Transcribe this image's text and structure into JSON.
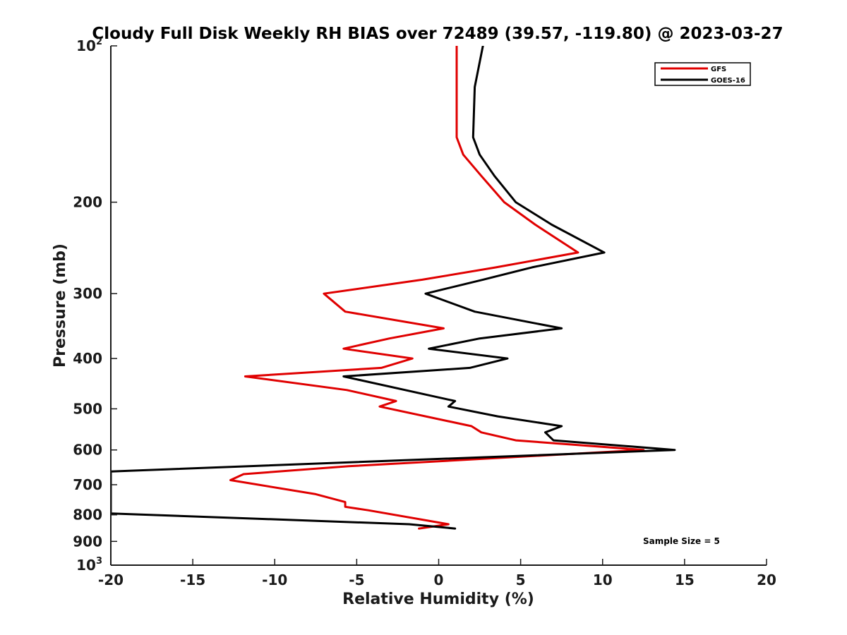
{
  "chart_data": {
    "type": "line",
    "title": "Cloudy Full Disk Weekly RH BIAS over 72489 (39.57, -119.80) @ 2023-03-27",
    "xlabel": "Relative Humidity (%)",
    "ylabel": "Pressure (mb)",
    "xlim": [
      -20,
      20
    ],
    "ylim": [
      100,
      1000
    ],
    "y_scale": "log",
    "y_reversed": true,
    "grid": false,
    "legend_position": "top-right",
    "x_ticks": [
      -20,
      -15,
      -10,
      -5,
      0,
      5,
      10,
      15,
      20
    ],
    "x_tick_labels": [
      "-20",
      "-15",
      "-10",
      "-5",
      "0",
      "5",
      "10",
      "15",
      "20"
    ],
    "y_ticks": [
      100,
      200,
      300,
      400,
      500,
      600,
      700,
      800,
      900,
      1000
    ],
    "y_tick_labels": [
      {
        "base": "10",
        "exp": "2"
      },
      {
        "base": "200",
        "exp": ""
      },
      {
        "base": "300",
        "exp": ""
      },
      {
        "base": "400",
        "exp": ""
      },
      {
        "base": "500",
        "exp": ""
      },
      {
        "base": "600",
        "exp": ""
      },
      {
        "base": "700",
        "exp": ""
      },
      {
        "base": "800",
        "exp": ""
      },
      {
        "base": "900",
        "exp": ""
      },
      {
        "base": "10",
        "exp": "3"
      }
    ],
    "series": [
      {
        "name": "GFS",
        "color": "#e00000",
        "points": [
          [
            1.1,
            100
          ],
          [
            1.1,
            125
          ],
          [
            1.1,
            150
          ],
          [
            1.5,
            162
          ],
          [
            2.6,
            178
          ],
          [
            4.0,
            200
          ],
          [
            5.9,
            221
          ],
          [
            8.5,
            250
          ],
          [
            3.5,
            267
          ],
          [
            -1.0,
            282
          ],
          [
            -7.0,
            300
          ],
          [
            -5.7,
            325
          ],
          [
            0.3,
            350
          ],
          [
            -3.0,
            366
          ],
          [
            -5.8,
            383
          ],
          [
            -1.6,
            400
          ],
          [
            -3.5,
            417
          ],
          [
            -11.8,
            433
          ],
          [
            -5.6,
            460
          ],
          [
            -2.6,
            483
          ],
          [
            -3.6,
            495
          ],
          [
            2.0,
            540
          ],
          [
            2.6,
            555
          ],
          [
            4.7,
            575
          ],
          [
            12.5,
            600
          ],
          [
            -5.5,
            645
          ],
          [
            -11.9,
            668
          ],
          [
            -12.7,
            686
          ],
          [
            -7.5,
            730
          ],
          [
            -5.7,
            756
          ],
          [
            -5.7,
            772
          ],
          [
            -4.3,
            784
          ],
          [
            0.6,
            834
          ],
          [
            -1.2,
            850
          ]
        ]
      },
      {
        "name": "GOES-16",
        "color": "#000000",
        "points": [
          [
            2.7,
            100
          ],
          [
            2.2,
            120
          ],
          [
            2.1,
            150
          ],
          [
            2.5,
            162
          ],
          [
            3.4,
            178
          ],
          [
            4.7,
            200
          ],
          [
            6.9,
            221
          ],
          [
            10.1,
            250
          ],
          [
            5.7,
            267
          ],
          [
            2.7,
            282
          ],
          [
            -0.8,
            300
          ],
          [
            2.2,
            325
          ],
          [
            7.5,
            350
          ],
          [
            2.5,
            366
          ],
          [
            -0.6,
            383
          ],
          [
            4.2,
            400
          ],
          [
            1.9,
            417
          ],
          [
            -5.8,
            433
          ],
          [
            -0.7,
            470
          ],
          [
            1.0,
            483
          ],
          [
            0.6,
            495
          ],
          [
            3.6,
            517
          ],
          [
            7.5,
            540
          ],
          [
            6.5,
            555
          ],
          [
            7.0,
            575
          ],
          [
            14.4,
            600
          ],
          [
            -20.0,
            660
          ],
          [
            -20.0,
            795
          ],
          [
            -1.8,
            834
          ],
          [
            1.0,
            850
          ]
        ]
      }
    ],
    "annotations": [
      {
        "text": "Sample Size = 5"
      }
    ]
  }
}
